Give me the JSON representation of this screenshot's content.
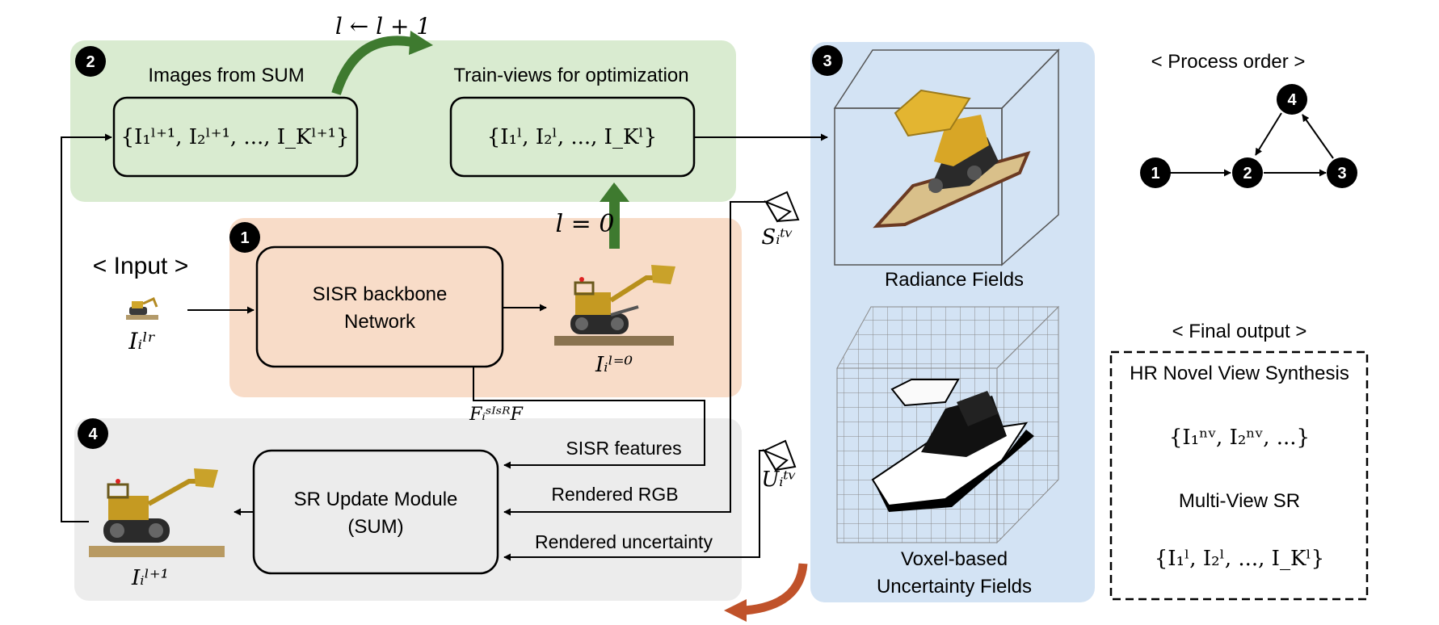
{
  "badges": {
    "one": "1",
    "two": "2",
    "three": "3",
    "four": "4"
  },
  "green_panel": {
    "images_from_sum": "Images from SUM",
    "train_views": "Train-views for optimization",
    "images_set": "{I₁ˡ⁺¹, I₂ˡ⁺¹, ..., I_Kˡ⁺¹}",
    "train_set": "{I₁ˡ, I₂ˡ, ..., I_Kˡ}",
    "update_rule": "l ← l + 1"
  },
  "orange_panel": {
    "backbone_line1": "SISR backbone",
    "backbone_line2": "Network",
    "init_rule": "l = 0",
    "output_symbol": "Iᵢˡ⁼⁰",
    "feature_symbol": "FᵢˢᴵˢᴿF"
  },
  "input": {
    "label": "< Input >",
    "symbol": "Iᵢˡʳ"
  },
  "gray_panel": {
    "sum_line1": "SR Update Module",
    "sum_line2": "(SUM)",
    "sisr_features": "SISR features",
    "rendered_rgb": "Rendered RGB",
    "rendered_uncertainty": "Rendered uncertainty",
    "output_symbol": "Iᵢˡ⁺¹"
  },
  "cameras": {
    "train_symbol": "Sᵢᵗᵛ",
    "uncert_symbol": "Uᵢᵗᵛ"
  },
  "blue_panel": {
    "radiance_fields": "Radiance Fields",
    "voxel_line1": "Voxel-based",
    "voxel_line2": "Uncertainty Fields"
  },
  "process_order": {
    "title": "< Process order >",
    "nodes": [
      "1",
      "2",
      "3",
      "4"
    ]
  },
  "final_output": {
    "title": "< Final output >",
    "hr_nvs": "HR Novel View Synthesis",
    "nv_set": "{I₁ⁿᵛ, I₂ⁿᵛ, ...}",
    "multi_view_sr": "Multi-View SR",
    "mv_set": "{I₁ˡ, I₂ˡ, ..., I_Kˡ}"
  },
  "colors": {
    "green_panel": "#d9ebd0",
    "orange_panel": "#f8dcc8",
    "gray_panel": "#ececec",
    "blue_panel": "#d3e3f4",
    "green_arrow": "#3e7a2f",
    "orange_arrow": "#c0522a"
  }
}
